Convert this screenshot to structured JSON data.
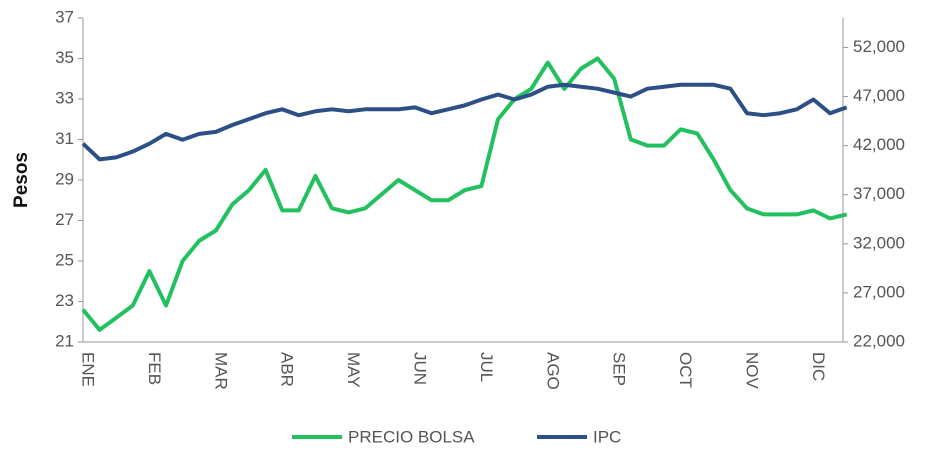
{
  "chart_data": {
    "type": "line",
    "y_label": "Pesos",
    "categories": [
      "ENE",
      null,
      null,
      null,
      "FEB",
      null,
      null,
      null,
      "MAR",
      null,
      null,
      null,
      "ABR",
      null,
      null,
      null,
      "MAY",
      null,
      null,
      null,
      "JUN",
      null,
      null,
      null,
      "JUL",
      null,
      null,
      null,
      "AGO",
      null,
      null,
      null,
      "SEP",
      null,
      null,
      null,
      "OCT",
      null,
      null,
      null,
      "NOV",
      null,
      null,
      null,
      "DIC",
      null,
      null
    ],
    "series": [
      {
        "name": "PRECIO BOLSA",
        "color": "#22c05e",
        "values": [
          22.6,
          21.6,
          22.2,
          22.8,
          24.5,
          22.8,
          25,
          26,
          26.5,
          27.8,
          28.5,
          29.5,
          27.5,
          27.5,
          29.2,
          27.6,
          27.4,
          27.6,
          28.3,
          29,
          28.5,
          28,
          28,
          28.5,
          28.7,
          32,
          33,
          33.5,
          34.8,
          33.5,
          34.5,
          35,
          34,
          31,
          30.7,
          30.7,
          31.5,
          31.3,
          30,
          28.5,
          27.6,
          27.3,
          27.3,
          27.3,
          27.5,
          27.1,
          27.3
        ]
      },
      {
        "name": "IPC",
        "color": "#2c4f85",
        "axis": "y2",
        "values": [
          42200,
          40600,
          40800,
          41400,
          42200,
          43200,
          42600,
          43200,
          43400,
          44100,
          44700,
          45300,
          45700,
          45100,
          45500,
          45700,
          45500,
          45700,
          45700,
          45700,
          45900,
          45300,
          45700,
          46100,
          46700,
          47200,
          46700,
          47200,
          48000,
          48200,
          48000,
          47800,
          47400,
          47000,
          47800,
          48000,
          48200,
          48200,
          48200,
          47800,
          45300,
          45100,
          45300,
          45700,
          46700,
          45300,
          45900
        ]
      }
    ],
    "ylim": [
      21,
      37
    ],
    "yticks": [
      21,
      23,
      25,
      27,
      29,
      31,
      33,
      35,
      37
    ],
    "y2lim": [
      22000,
      55000
    ],
    "y2ticks": [
      {
        "value": 22000,
        "label": "22,000"
      },
      {
        "value": 27000,
        "label": "27,000"
      },
      {
        "value": 32000,
        "label": "32,000"
      },
      {
        "value": 37000,
        "label": "37,000"
      },
      {
        "value": 42000,
        "label": "42,000"
      },
      {
        "value": 47000,
        "label": "47,000"
      },
      {
        "value": 52000,
        "label": "52,000"
      }
    ],
    "grid": false,
    "legend": "bottom"
  }
}
